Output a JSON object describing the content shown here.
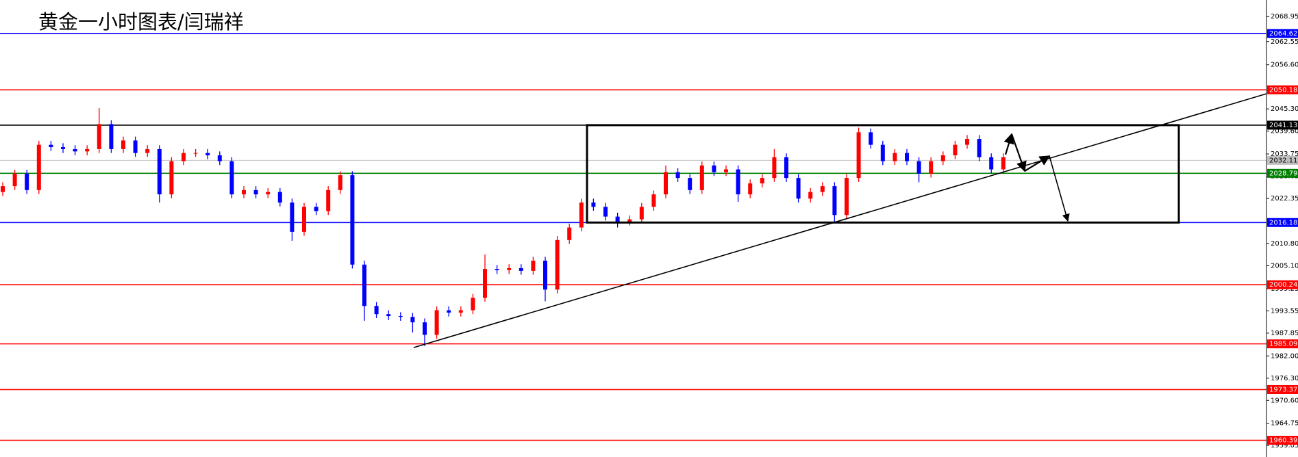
{
  "chart_data": {
    "type": "candlestick",
    "title": "黄金一小时图表/闫瑞祥",
    "up_color": "#ff0000",
    "down_color": "#0000ff",
    "ylim": [
      1956.1,
      2073.2
    ],
    "yticks": [
      2068.95,
      2062.55,
      {
        "value": 2056.6,
        "label": "2056.60"
      },
      {
        "value": 2045.3,
        "label": "2045.30"
      },
      {
        "value": 2039.6,
        "label": "2039.60"
      },
      2033.75,
      2028.05,
      2022.35,
      {
        "value": 2010.8,
        "label": "2010.80"
      },
      {
        "value": 2005.1,
        "label": "2005.10"
      },
      1999.25,
      1993.55,
      1987.85,
      {
        "value": 1982.0,
        "label": "1982.00"
      },
      {
        "value": 1976.3,
        "label": "1976.30"
      },
      {
        "value": 1970.6,
        "label": "1970.60"
      },
      1964.75,
      1959.05
    ],
    "levels": [
      {
        "value": 2064.62,
        "color": "#0000ff"
      },
      {
        "value": 2050.18,
        "color": "#ff0000"
      },
      {
        "value": 2041.13,
        "color": "#000000"
      },
      {
        "value": 2032.11,
        "color": "#c0c0c0"
      },
      {
        "value": 2028.79,
        "color": "#008000"
      },
      {
        "value": 2016.18,
        "color": "#0000ff"
      },
      {
        "value": 2000.24,
        "color": "#ff0000"
      },
      {
        "value": 1985.09,
        "color": "#ff0000"
      },
      {
        "value": 1973.37,
        "color": "#ff0000"
      },
      {
        "value": 1960.39,
        "color": "#ff0000"
      }
    ],
    "open": [
      2024.0,
      2025.5,
      2028.7,
      2024.5,
      2036.1,
      2035.5,
      2035.0,
      2034.4,
      2035.0,
      2041.4,
      2035.0,
      2037.2,
      2034.0,
      2035.0,
      2023.4,
      2031.9,
      2034.0,
      2034.0,
      2033.4,
      2031.9,
      2023.4,
      2024.5,
      2023.4,
      2024.0,
      2021.3,
      2013.8,
      2020.2,
      2019.1,
      2024.5,
      2028.3,
      2005.4,
      1994.8,
      1992.7,
      1992.2,
      1992.0,
      1990.6,
      1987.4,
      1993.7,
      1993.1,
      1993.7,
      1996.9,
      2004.3,
      2004.0,
      2004.5,
      2003.8,
      2006.4,
      1999.0,
      2011.7,
      2014.9,
      2021.3,
      2020.2,
      2017.7,
      2016.4,
      2017.0,
      2020.2,
      2023.4,
      2029.1,
      2027.6,
      2024.5,
      2030.8,
      2029.1,
      2029.8,
      2023.4,
      2026.2,
      2027.6,
      2032.9,
      2027.6,
      2022.3,
      2024.0,
      2025.5,
      2018.1,
      2027.6,
      2039.3,
      2036.1,
      2031.9,
      2034.0,
      2031.9,
      2028.7,
      2031.9,
      2033.4,
      2036.1,
      2037.6,
      2032.9,
      2029.8
    ],
    "high": [
      2026.5,
      2029.7,
      2029.7,
      2037.1,
      2037.1,
      2036.5,
      2036.0,
      2036.0,
      2045.5,
      2042.4,
      2038.2,
      2038.2,
      2036.0,
      2036.0,
      2032.9,
      2035.0,
      2035.0,
      2035.0,
      2034.4,
      2032.9,
      2025.5,
      2025.5,
      2025.0,
      2025.0,
      2022.3,
      2021.2,
      2021.2,
      2025.5,
      2029.3,
      2029.3,
      2006.4,
      1995.8,
      1993.7,
      1993.2,
      1993.0,
      1991.6,
      1994.7,
      1994.7,
      1994.7,
      1997.9,
      2008.0,
      2005.3,
      2005.5,
      2005.5,
      2007.4,
      2007.4,
      2012.7,
      2015.9,
      2022.3,
      2022.3,
      2021.2,
      2018.7,
      2018.0,
      2021.2,
      2024.4,
      2030.8,
      2030.1,
      2028.6,
      2031.8,
      2031.8,
      2030.8,
      2030.8,
      2027.2,
      2028.6,
      2035.0,
      2033.9,
      2028.6,
      2025.0,
      2026.5,
      2026.5,
      2028.6,
      2040.5,
      2040.3,
      2037.1,
      2035.0,
      2035.0,
      2032.9,
      2032.9,
      2034.4,
      2037.1,
      2038.6,
      2038.6,
      2033.9,
      2033.9
    ],
    "low": [
      2023.0,
      2024.5,
      2023.5,
      2023.5,
      2034.5,
      2034.0,
      2033.4,
      2033.4,
      2034.0,
      2034.0,
      2034.0,
      2033.0,
      2033.0,
      2021.3,
      2022.4,
      2030.9,
      2033.0,
      2032.4,
      2030.9,
      2022.4,
      2022.4,
      2022.4,
      2022.4,
      2020.3,
      2011.5,
      2012.8,
      2018.1,
      2018.1,
      2023.5,
      2004.4,
      1991.0,
      1991.7,
      1991.2,
      1991.0,
      1988.0,
      1984.5,
      1986.4,
      1992.1,
      1992.1,
      1992.7,
      1995.9,
      2003.0,
      2003.0,
      2002.8,
      2002.8,
      1996.0,
      1998.0,
      2010.7,
      2013.9,
      2019.2,
      2016.7,
      2014.9,
      2015.4,
      2016.0,
      2019.2,
      2022.4,
      2026.6,
      2023.5,
      2023.5,
      2028.1,
      2028.1,
      2021.5,
      2022.4,
      2025.2,
      2026.6,
      2026.6,
      2021.3,
      2021.3,
      2023.0,
      2016.3,
      2017.1,
      2026.6,
      2035.1,
      2030.9,
      2030.9,
      2030.9,
      2026.5,
      2027.7,
      2030.9,
      2032.4,
      2035.1,
      2031.9,
      2028.8,
      2028.8
    ],
    "close": [
      2025.5,
      2028.7,
      2024.5,
      2036.1,
      2035.5,
      2035.0,
      2034.4,
      2035.0,
      2041.4,
      2035.0,
      2037.2,
      2034.0,
      2035.0,
      2023.4,
      2031.9,
      2034.0,
      2034.0,
      2033.4,
      2031.9,
      2023.4,
      2024.5,
      2023.4,
      2024.0,
      2021.3,
      2013.8,
      2020.2,
      2019.1,
      2024.5,
      2028.3,
      2005.4,
      1994.8,
      1992.7,
      1992.2,
      1992.0,
      1990.6,
      1987.4,
      1993.7,
      1993.1,
      1993.7,
      1996.9,
      2004.3,
      2004.0,
      2004.5,
      2003.8,
      2006.4,
      1999.0,
      2011.7,
      2014.9,
      2021.3,
      2020.2,
      2017.7,
      2016.4,
      2017.0,
      2020.2,
      2023.4,
      2029.1,
      2027.6,
      2024.5,
      2030.8,
      2029.1,
      2029.8,
      2023.4,
      2026.2,
      2027.6,
      2032.9,
      2027.6,
      2022.3,
      2024.0,
      2025.5,
      2018.1,
      2027.6,
      2039.3,
      2036.1,
      2031.9,
      2034.0,
      2031.9,
      2028.7,
      2031.9,
      2033.4,
      2036.1,
      2037.6,
      2032.9,
      2029.8,
      2032.9
    ]
  }
}
